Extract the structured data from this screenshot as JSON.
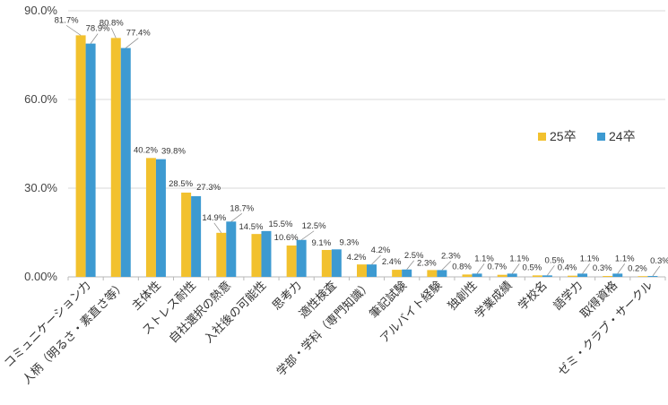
{
  "chart_data": {
    "type": "bar",
    "ylim": [
      0,
      90
    ],
    "yticks": [
      "0.00%",
      "30.0%",
      "60.0%",
      "90.0%"
    ],
    "ytick_values": [
      0,
      30,
      60,
      90
    ],
    "legend_position": "right",
    "grid": true,
    "categories": [
      "コミュニケーション力",
      "人柄（明るさ・素直さ等）",
      "主体性",
      "ストレス耐性",
      "自社選択の熱意",
      "入社後の可能性",
      "思考力",
      "適性検査",
      "学部・学科（専門知識）",
      "筆記試験",
      "アルバイト経験",
      "独創性",
      "学業成績",
      "学校名",
      "語学力",
      "取得資格",
      "ゼミ・クラブ・サークル"
    ],
    "series": [
      {
        "name": "25卒",
        "color": "#F2C12E",
        "values": [
          81.7,
          80.8,
          40.2,
          28.5,
          14.9,
          14.5,
          10.6,
          9.1,
          4.2,
          2.4,
          2.3,
          0.8,
          0.7,
          0.5,
          0.4,
          0.3,
          0.2
        ],
        "labels": [
          "81.7%",
          "80.8%",
          "40.2%",
          "28.5%",
          "14.9%",
          "14.5%",
          "10.6%",
          "9.1%",
          "4.2%",
          "2.4%",
          "2.3%",
          "0.8%",
          "0.7%",
          "0.5%",
          "0.4%",
          "0.3%",
          "0.2%"
        ]
      },
      {
        "name": "24卒",
        "color": "#3D9AD1",
        "values": [
          78.9,
          77.4,
          39.8,
          27.3,
          18.7,
          15.5,
          12.5,
          9.3,
          4.2,
          2.5,
          2.3,
          1.1,
          1.1,
          0.5,
          1.1,
          1.1,
          0.3
        ],
        "labels": [
          "78.9%",
          "77.4%",
          "39.8%",
          "27.3%",
          "18.7%",
          "15.5%",
          "12.5%",
          "9.3%",
          "4.2%",
          "2.5%",
          "2.3%",
          "1.1%",
          "1.1%",
          "0.5%",
          "1.1%",
          "1.1%",
          "0.3%"
        ]
      }
    ]
  }
}
